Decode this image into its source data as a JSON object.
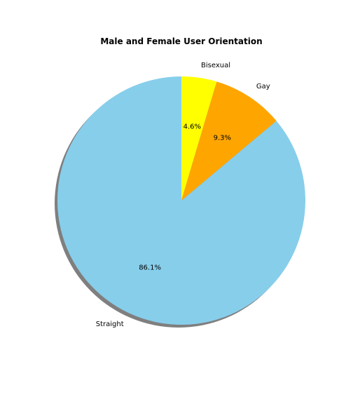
{
  "chart_data": {
    "type": "pie",
    "title": "Male and Female User Orientation",
    "categories": [
      "Bisexual",
      "Gay",
      "Straight"
    ],
    "values": [
      4.6,
      9.3,
      86.1
    ],
    "value_labels": [
      "4.6%",
      "9.3%",
      "86.1%"
    ],
    "colors": {
      "Bisexual": "#ffff00",
      "Gay": "#ffa500",
      "Straight": "#87ceeb"
    },
    "start_angle_deg": 90,
    "direction": "clockwise",
    "shadow": true,
    "shadow_color": "#7f7f7f",
    "legend": "none"
  }
}
